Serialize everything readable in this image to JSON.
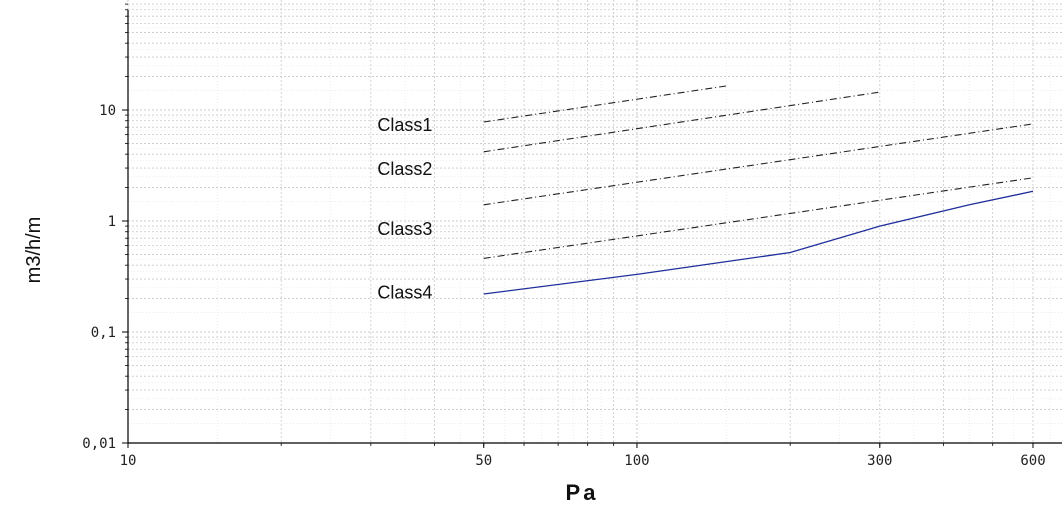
{
  "chart_data": {
    "type": "line",
    "title": "",
    "xlabel": "Pa",
    "ylabel": "m3/h/m",
    "xscale": "log",
    "yscale": "log",
    "xlim": [
      10,
      650
    ],
    "ylim": [
      0.01,
      100
    ],
    "xticks": [
      {
        "value": 10,
        "label": "10"
      },
      {
        "value": 50,
        "label": "50"
      },
      {
        "value": 100,
        "label": "100"
      },
      {
        "value": 300,
        "label": "300"
      },
      {
        "value": 600,
        "label": "600"
      }
    ],
    "yticks": [
      {
        "value": 0.01,
        "label": "0,01"
      },
      {
        "value": 0.1,
        "label": "0,1"
      },
      {
        "value": 1,
        "label": "1"
      },
      {
        "value": 10,
        "label": "10"
      }
    ],
    "grid": true,
    "series": [
      {
        "style": "dashdot",
        "color": "#222222",
        "x": [
          50,
          150
        ],
        "y": [
          7.8,
          16.5
        ]
      },
      {
        "style": "dashdot",
        "color": "#222222",
        "x": [
          50,
          300
        ],
        "y": [
          4.2,
          14.5
        ]
      },
      {
        "style": "dashdot",
        "color": "#222222",
        "x": [
          50,
          600
        ],
        "y": [
          1.4,
          7.5
        ]
      },
      {
        "style": "dashdot",
        "color": "#222222",
        "x": [
          50,
          600
        ],
        "y": [
          0.46,
          2.45
        ]
      },
      {
        "style": "solid",
        "color": "#1f2e9c",
        "x": [
          50,
          100,
          200,
          300,
          450,
          600
        ],
        "y": [
          0.22,
          0.33,
          0.52,
          0.9,
          1.4,
          1.85
        ]
      }
    ],
    "annotations": [
      {
        "text": "Class1",
        "x": 35,
        "y": 6.5
      },
      {
        "text": "Class2",
        "x": 35,
        "y": 2.6
      },
      {
        "text": "Class3",
        "x": 35,
        "y": 0.75
      },
      {
        "text": "Class4",
        "x": 35,
        "y": 0.2
      }
    ]
  }
}
